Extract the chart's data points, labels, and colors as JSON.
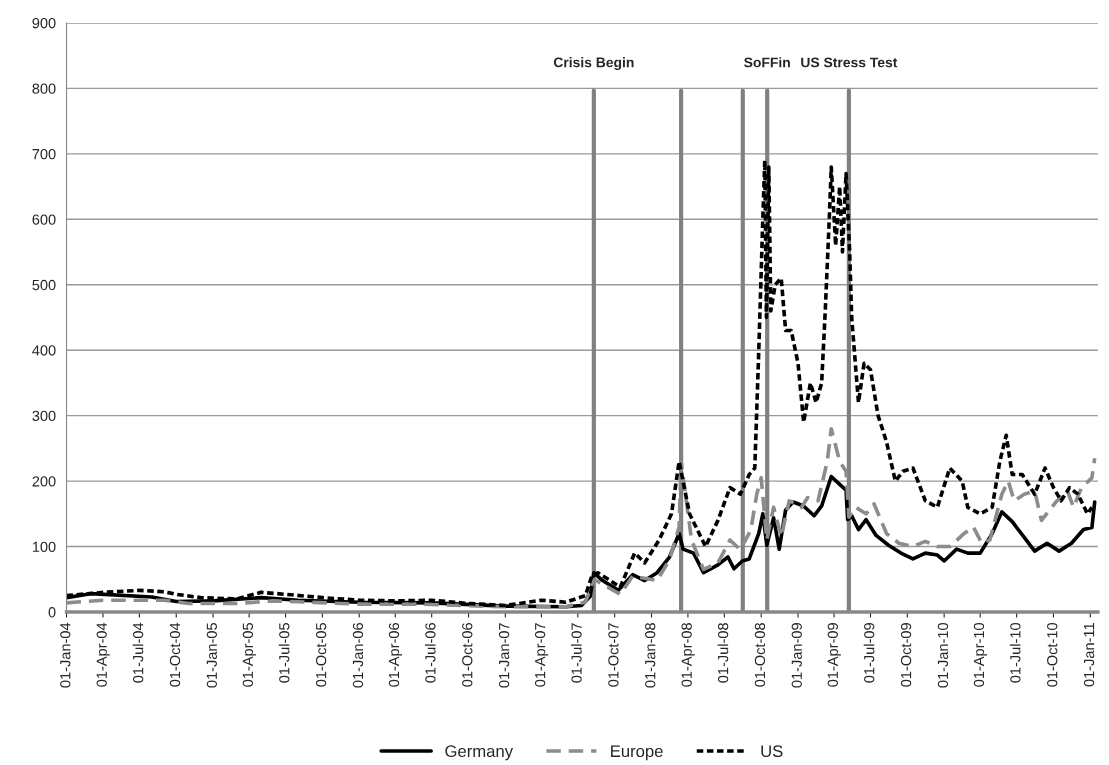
{
  "chart_data": {
    "type": "line",
    "xlim": [
      "2004-01-01",
      "2011-01-20"
    ],
    "ylim": [
      0,
      900
    ],
    "yticks": [
      0,
      100,
      200,
      300,
      400,
      500,
      600,
      700,
      800,
      900
    ],
    "xticks": [
      {
        "value": "2004-01-01",
        "label": "01-Jan-04"
      },
      {
        "value": "2004-04-01",
        "label": "01-Apr-04"
      },
      {
        "value": "2004-07-01",
        "label": "01-Jul-04"
      },
      {
        "value": "2004-10-01",
        "label": "01-Oct-04"
      },
      {
        "value": "2005-01-01",
        "label": "01-Jan-05"
      },
      {
        "value": "2005-04-01",
        "label": "01-Apr-05"
      },
      {
        "value": "2005-07-01",
        "label": "01-Jul-05"
      },
      {
        "value": "2005-10-01",
        "label": "01-Oct-05"
      },
      {
        "value": "2006-01-01",
        "label": "01-Jan-06"
      },
      {
        "value": "2006-04-01",
        "label": "01-Apr-06"
      },
      {
        "value": "2006-07-01",
        "label": "01-Jul-06"
      },
      {
        "value": "2006-10-01",
        "label": "01-Oct-06"
      },
      {
        "value": "2007-01-01",
        "label": "01-Jan-07"
      },
      {
        "value": "2007-04-01",
        "label": "01-Apr-07"
      },
      {
        "value": "2007-07-01",
        "label": "01-Jul-07"
      },
      {
        "value": "2007-10-01",
        "label": "01-Oct-07"
      },
      {
        "value": "2008-01-01",
        "label": "01-Jan-08"
      },
      {
        "value": "2008-04-01",
        "label": "01-Apr-08"
      },
      {
        "value": "2008-07-01",
        "label": "01-Jul-08"
      },
      {
        "value": "2008-10-01",
        "label": "01-Oct-08"
      },
      {
        "value": "2009-01-01",
        "label": "01-Jan-09"
      },
      {
        "value": "2009-04-01",
        "label": "01-Apr-09"
      },
      {
        "value": "2009-07-01",
        "label": "01-Jul-09"
      },
      {
        "value": "2009-10-01",
        "label": "01-Oct-09"
      },
      {
        "value": "2010-01-01",
        "label": "01-Jan-10"
      },
      {
        "value": "2010-04-01",
        "label": "01-Apr-10"
      },
      {
        "value": "2010-07-01",
        "label": "01-Jul-10"
      },
      {
        "value": "2010-10-01",
        "label": "01-Oct-10"
      },
      {
        "value": "2011-01-01",
        "label": "01-Jan-11"
      }
    ],
    "grid": "y",
    "legend": "bottom",
    "ref_lines": [
      {
        "axis": "x",
        "value": "2007-08-10",
        "label": "Crisis Begin",
        "color": "#808080"
      },
      {
        "axis": "x",
        "value": "2008-03-15",
        "label": null,
        "color": "#808080"
      },
      {
        "axis": "x",
        "value": "2008-08-16",
        "label": null,
        "color": "#808080"
      },
      {
        "axis": "x",
        "value": "2008-10-16",
        "label": "SoFFin",
        "color": "#808080"
      },
      {
        "axis": "x",
        "value": "2009-05-08",
        "label": "US Stress Test",
        "color": "#808080"
      }
    ],
    "series": [
      {
        "name": "Germany",
        "color": "#000000",
        "line_style": "solid",
        "x": [
          "2004-01-01",
          "2004-03-01",
          "2004-08-01",
          "2004-10-01",
          "2005-01-01",
          "2005-05-01",
          "2005-08-01",
          "2006-01-01",
          "2006-07-01",
          "2007-01-01",
          "2007-06-01",
          "2007-07-10",
          "2007-08-01",
          "2007-08-10",
          "2007-09-01",
          "2007-10-10",
          "2007-11-15",
          "2007-12-15",
          "2008-01-15",
          "2008-02-15",
          "2008-03-10",
          "2008-03-20",
          "2008-04-15",
          "2008-05-10",
          "2008-06-15",
          "2008-07-10",
          "2008-07-25",
          "2008-08-15",
          "2008-09-01",
          "2008-09-25",
          "2008-10-05",
          "2008-10-15",
          "2008-11-01",
          "2008-11-15",
          "2008-12-01",
          "2008-12-20",
          "2009-01-15",
          "2009-02-10",
          "2009-03-01",
          "2009-03-25",
          "2009-04-15",
          "2009-05-01",
          "2009-05-05",
          "2009-05-15",
          "2009-06-01",
          "2009-06-20",
          "2009-07-15",
          "2009-08-15",
          "2009-09-15",
          "2009-10-15",
          "2009-11-15",
          "2009-12-15",
          "2010-01-01",
          "2010-02-01",
          "2010-03-01",
          "2010-04-01",
          "2010-05-01",
          "2010-05-25",
          "2010-06-20",
          "2010-07-20",
          "2010-08-15",
          "2010-09-15",
          "2010-10-15",
          "2010-11-15",
          "2010-12-15",
          "2011-01-05",
          "2011-01-12"
        ],
        "values": [
          22,
          28,
          23,
          16,
          17,
          22,
          18,
          15,
          14,
          9,
          8,
          10,
          24,
          60,
          48,
          33,
          57,
          48,
          60,
          84,
          120,
          96,
          90,
          60,
          72,
          84,
          66,
          78,
          81,
          120,
          150,
          102,
          144,
          96,
          156,
          168,
          162,
          147,
          162,
          207,
          195,
          186,
          141,
          147,
          126,
          141,
          117,
          102,
          90,
          81,
          90,
          87,
          78,
          96,
          90,
          90,
          120,
          153,
          138,
          114,
          93,
          105,
          93,
          105,
          126,
          129,
          168
        ]
      },
      {
        "name": "Europe",
        "color": "#8c8c8c",
        "line_style": "dashed",
        "x": [
          "2004-01-01",
          "2004-04-01",
          "2004-09-01",
          "2004-11-01",
          "2005-03-01",
          "2005-06-01",
          "2006-01-01",
          "2006-06-01",
          "2007-01-01",
          "2007-06-01",
          "2007-07-20",
          "2007-08-10",
          "2007-10-15",
          "2007-11-15",
          "2008-01-15",
          "2008-02-15",
          "2008-03-10",
          "2008-03-15",
          "2008-04-10",
          "2008-05-10",
          "2008-06-15",
          "2008-07-15",
          "2008-08-10",
          "2008-09-05",
          "2008-09-20",
          "2008-10-01",
          "2008-10-15",
          "2008-11-01",
          "2008-11-20",
          "2008-12-10",
          "2009-01-10",
          "2009-01-25",
          "2009-02-20",
          "2009-03-15",
          "2009-03-25",
          "2009-04-15",
          "2009-05-01",
          "2009-05-08",
          "2009-05-25",
          "2009-06-20",
          "2009-07-10",
          "2009-08-10",
          "2009-09-10",
          "2009-10-15",
          "2009-11-15",
          "2009-12-15",
          "2010-01-15",
          "2010-02-20",
          "2010-03-15",
          "2010-04-05",
          "2010-04-25",
          "2010-05-25",
          "2010-06-10",
          "2010-06-25",
          "2010-07-20",
          "2010-08-15",
          "2010-09-01",
          "2010-10-10",
          "2010-11-05",
          "2010-11-20",
          "2010-12-10",
          "2011-01-05",
          "2011-01-12"
        ],
        "values": [
          14,
          18,
          18,
          13,
          13,
          17,
          12,
          12,
          8,
          8,
          15,
          50,
          27,
          55,
          48,
          80,
          130,
          230,
          110,
          65,
          75,
          110,
          95,
          125,
          180,
          205,
          110,
          160,
          115,
          170,
          160,
          175,
          170,
          230,
          280,
          230,
          215,
          145,
          160,
          150,
          165,
          120,
          105,
          100,
          108,
          100,
          100,
          120,
          130,
          105,
          110,
          180,
          200,
          170,
          180,
          185,
          140,
          170,
          185,
          160,
          190,
          205,
          235
        ]
      },
      {
        "name": "US",
        "color": "#000000",
        "line_style": "dotted",
        "x": [
          "2004-01-01",
          "2004-04-01",
          "2004-07-01",
          "2004-09-01",
          "2004-10-01",
          "2004-12-01",
          "2005-03-01",
          "2005-05-01",
          "2005-07-01",
          "2005-10-01",
          "2006-01-01",
          "2006-04-01",
          "2006-07-01",
          "2006-10-01",
          "2007-01-01",
          "2007-04-01",
          "2007-06-01",
          "2007-07-20",
          "2007-08-05",
          "2007-08-20",
          "2007-09-15",
          "2007-10-15",
          "2007-11-20",
          "2007-12-15",
          "2008-01-20",
          "2008-02-20",
          "2008-03-10",
          "2008-04-05",
          "2008-05-15",
          "2008-06-15",
          "2008-07-15",
          "2008-08-10",
          "2008-09-01",
          "2008-09-15",
          "2008-09-25",
          "2008-10-05",
          "2008-10-10",
          "2008-10-14",
          "2008-10-20",
          "2008-10-25",
          "2008-11-05",
          "2008-11-20",
          "2008-12-01",
          "2008-12-15",
          "2009-01-01",
          "2009-01-15",
          "2009-02-01",
          "2009-02-15",
          "2009-03-01",
          "2009-03-10",
          "2009-03-20",
          "2009-03-25",
          "2009-04-05",
          "2009-04-15",
          "2009-04-22",
          "2009-05-01",
          "2009-05-10",
          "2009-05-15",
          "2009-06-01",
          "2009-06-15",
          "2009-07-01",
          "2009-07-20",
          "2009-08-10",
          "2009-09-01",
          "2009-09-20",
          "2009-10-15",
          "2009-11-15",
          "2009-12-15",
          "2010-01-15",
          "2010-02-15",
          "2010-03-01",
          "2010-04-01",
          "2010-05-01",
          "2010-05-20",
          "2010-06-05",
          "2010-06-20",
          "2010-07-15",
          "2010-08-15",
          "2010-09-10",
          "2010-10-01",
          "2010-10-20",
          "2010-11-10",
          "2010-12-01",
          "2010-12-25",
          "2011-01-05"
        ],
        "values": [
          25,
          30,
          33,
          31,
          27,
          22,
          20,
          30,
          27,
          22,
          18,
          17,
          18,
          13,
          10,
          18,
          15,
          25,
          55,
          60,
          50,
          38,
          90,
          75,
          110,
          150,
          230,
          150,
          100,
          140,
          190,
          180,
          210,
          220,
          400,
          600,
          690,
          450,
          680,
          460,
          500,
          510,
          430,
          430,
          380,
          290,
          350,
          320,
          350,
          460,
          600,
          680,
          560,
          650,
          550,
          670,
          550,
          450,
          320,
          380,
          370,
          300,
          260,
          200,
          215,
          220,
          170,
          160,
          220,
          200,
          160,
          150,
          160,
          230,
          270,
          210,
          210,
          180,
          220,
          190,
          170,
          190,
          180,
          150,
          160
        ]
      }
    ]
  }
}
